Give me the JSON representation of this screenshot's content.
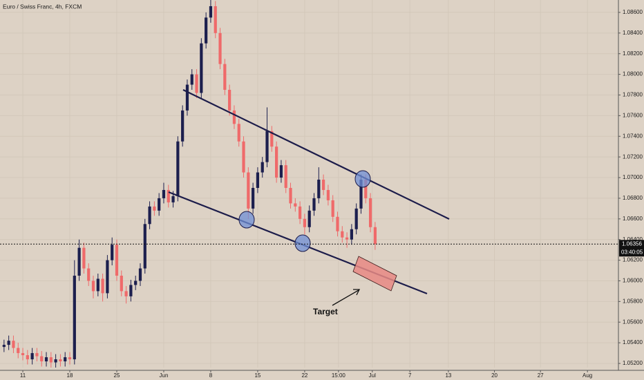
{
  "chart_data": {
    "type": "candlestick",
    "title": "Euro / Swiss Franc, 4h, FXCM",
    "x": [
      -2,
      -1.5,
      -1,
      -0.5,
      0,
      0.5,
      1,
      1.5,
      2,
      2.5,
      3,
      3.5,
      4,
      4.5,
      5,
      5.5,
      6,
      6.5,
      7,
      7.5,
      8,
      8.5,
      9,
      9.5,
      10,
      10.5,
      11,
      11.5,
      12,
      12.5,
      13,
      13.5,
      14,
      14.5,
      15,
      15.5,
      16,
      16.5,
      17,
      17.5,
      18,
      18.5,
      19,
      19.5,
      20,
      20.5,
      21,
      21.5,
      22,
      22.5,
      23,
      23.5,
      24,
      24.5,
      25,
      25.5,
      26,
      26.5,
      27,
      27.5,
      28,
      28.5,
      29,
      29.5,
      30,
      30.5,
      31,
      31.5,
      32,
      32.5,
      33,
      33.5,
      34,
      34.5,
      35,
      35.5,
      36,
      36.5,
      37,
      37.5
    ],
    "open": [
      1.0536,
      1.0538,
      1.0542,
      1.0535,
      1.053,
      1.0528,
      1.0524,
      1.053,
      1.0527,
      1.0522,
      1.0526,
      1.0521,
      1.0524,
      1.0522,
      1.0526,
      1.0524,
      1.0605,
      1.0632,
      1.0612,
      1.06,
      1.059,
      1.0602,
      1.0588,
      1.062,
      1.0635,
      1.0605,
      1.059,
      1.0585,
      1.0596,
      1.06,
      1.0612,
      1.0655,
      1.0672,
      1.0668,
      1.068,
      1.0688,
      1.0676,
      1.0682,
      1.0735,
      1.0765,
      1.079,
      1.08,
      1.0782,
      1.083,
      1.0855,
      1.0866,
      1.084,
      1.081,
      1.0785,
      1.0765,
      1.0752,
      1.0735,
      1.0705,
      1.067,
      1.069,
      1.0705,
      1.0715,
      1.0745,
      1.073,
      1.07,
      1.0712,
      1.069,
      1.0675,
      1.0672,
      1.066,
      1.0652,
      1.0668,
      1.068,
      1.0698,
      1.0688,
      1.0678,
      1.0662,
      1.0648,
      1.0642,
      1.064,
      1.065,
      1.067,
      1.0698,
      1.068,
      1.0652
    ],
    "high": [
      1.0543,
      1.0547,
      1.0547,
      1.054,
      1.0535,
      1.0533,
      1.0535,
      1.0535,
      1.0532,
      1.0531,
      1.0531,
      1.0529,
      1.0529,
      1.0531,
      1.0531,
      1.062,
      1.064,
      1.0637,
      1.0617,
      1.0605,
      1.0607,
      1.0607,
      1.0625,
      1.0642,
      1.064,
      1.061,
      1.0595,
      1.0601,
      1.0605,
      1.0617,
      1.066,
      1.0677,
      1.0677,
      1.0685,
      1.0695,
      1.0693,
      1.0687,
      1.074,
      1.077,
      1.0795,
      1.0805,
      1.0805,
      1.0835,
      1.086,
      1.0872,
      1.0871,
      1.0845,
      1.0815,
      1.079,
      1.077,
      1.0757,
      1.074,
      1.071,
      1.0695,
      1.071,
      1.072,
      1.0768,
      1.075,
      1.0735,
      1.0717,
      1.0717,
      1.0695,
      1.068,
      1.0677,
      1.0665,
      1.0673,
      1.0685,
      1.071,
      1.0703,
      1.0693,
      1.0683,
      1.0667,
      1.0653,
      1.0647,
      1.0655,
      1.0675,
      1.0703,
      1.0703,
      1.0685,
      1.0657
    ],
    "low": [
      1.0531,
      1.0533,
      1.053,
      1.0525,
      1.0523,
      1.0519,
      1.0519,
      1.0522,
      1.0517,
      1.0517,
      1.0516,
      1.0516,
      1.0517,
      1.0517,
      1.0519,
      1.0519,
      1.06,
      1.0607,
      1.0595,
      1.0583,
      1.0585,
      1.058,
      1.0583,
      1.0615,
      1.06,
      1.0585,
      1.0578,
      1.058,
      1.0591,
      1.0595,
      1.0607,
      1.065,
      1.0663,
      1.0663,
      1.0675,
      1.0671,
      1.0671,
      1.0677,
      1.073,
      1.076,
      1.0785,
      1.0777,
      1.0777,
      1.0825,
      1.085,
      1.0835,
      1.0805,
      1.078,
      1.076,
      1.0747,
      1.073,
      1.07,
      1.066,
      1.0665,
      1.0685,
      1.07,
      1.071,
      1.0725,
      1.0695,
      1.0695,
      1.0685,
      1.067,
      1.0667,
      1.0655,
      1.0645,
      1.0647,
      1.0663,
      1.0675,
      1.0683,
      1.0673,
      1.0657,
      1.0643,
      1.0637,
      1.0632,
      1.0635,
      1.0645,
      1.0665,
      1.0675,
      1.0647,
      1.063
    ],
    "close": [
      1.0538,
      1.0542,
      1.0535,
      1.053,
      1.0528,
      1.0524,
      1.053,
      1.0527,
      1.0522,
      1.0526,
      1.0521,
      1.0524,
      1.0522,
      1.0526,
      1.0524,
      1.0605,
      1.0632,
      1.0612,
      1.06,
      1.059,
      1.0602,
      1.0588,
      1.062,
      1.0635,
      1.0605,
      1.059,
      1.0585,
      1.0596,
      1.06,
      1.0612,
      1.0655,
      1.0672,
      1.0668,
      1.068,
      1.0688,
      1.0676,
      1.0682,
      1.0735,
      1.0765,
      1.079,
      1.08,
      1.0782,
      1.083,
      1.0855,
      1.0866,
      1.084,
      1.081,
      1.0785,
      1.0765,
      1.0752,
      1.0735,
      1.0705,
      1.067,
      1.069,
      1.0705,
      1.0715,
      1.0745,
      1.073,
      1.07,
      1.0712,
      1.069,
      1.0675,
      1.0672,
      1.066,
      1.0652,
      1.0668,
      1.068,
      1.0698,
      1.0688,
      1.0678,
      1.0662,
      1.0648,
      1.0642,
      1.064,
      1.065,
      1.067,
      1.0698,
      1.068,
      1.0652,
      1.06356
    ],
    "up_color": "#1c1f4e",
    "down_color": "#ef6a6a",
    "xlim": [
      -2.43,
      63.4
    ],
    "xticks": [
      {
        "value": 0,
        "label": "11"
      },
      {
        "value": 5,
        "label": "18"
      },
      {
        "value": 10,
        "label": "25"
      },
      {
        "value": 15,
        "label": "Jun"
      },
      {
        "value": 20,
        "label": "8"
      },
      {
        "value": 25,
        "label": "15"
      },
      {
        "value": 30,
        "label": "22"
      },
      {
        "value": 33.6,
        "label": "15:00"
      },
      {
        "value": 37.2,
        "label": "Jul"
      },
      {
        "value": 41.2,
        "label": "7"
      },
      {
        "value": 45.3,
        "label": "13"
      },
      {
        "value": 50.2,
        "label": "20"
      },
      {
        "value": 55.1,
        "label": "27"
      },
      {
        "value": 60.1,
        "label": "Aug"
      }
    ],
    "ylim": [
      1.0516,
      1.0872
    ],
    "yticks": [
      {
        "value": 1.052,
        "label": "1.05200"
      },
      {
        "value": 1.054,
        "label": "1.05400"
      },
      {
        "value": 1.056,
        "label": "1.05600"
      },
      {
        "value": 1.058,
        "label": "1.05800"
      },
      {
        "value": 1.06,
        "label": "1.06000"
      },
      {
        "value": 1.062,
        "label": "1.06200"
      },
      {
        "value": 1.064,
        "label": "1.06400"
      },
      {
        "value": 1.066,
        "label": "1.06600"
      },
      {
        "value": 1.068,
        "label": "1.06800"
      },
      {
        "value": 1.07,
        "label": "1.07000"
      },
      {
        "value": 1.072,
        "label": "1.07200"
      },
      {
        "value": 1.074,
        "label": "1.07400"
      },
      {
        "value": 1.076,
        "label": "1.07600"
      },
      {
        "value": 1.078,
        "label": "1.07800"
      },
      {
        "value": 1.08,
        "label": "1.08000"
      },
      {
        "value": 1.082,
        "label": "1.08200"
      },
      {
        "value": 1.084,
        "label": "1.08400"
      },
      {
        "value": 1.086,
        "label": "1.08600"
      }
    ],
    "grid": true,
    "current_price": 1.06356,
    "countdown": "03:40:05",
    "annotation": "Target"
  }
}
